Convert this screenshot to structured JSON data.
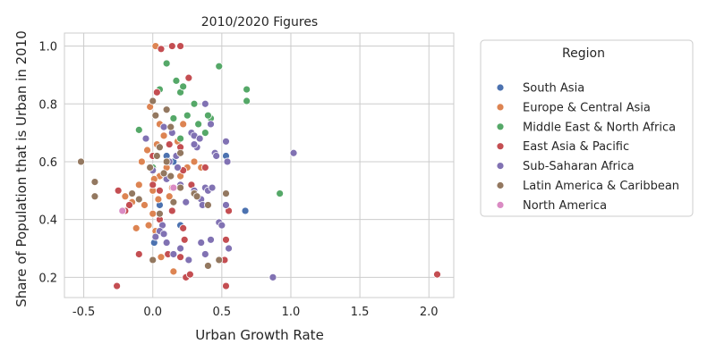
{
  "chart_data": {
    "type": "scatter",
    "title": "2010/2020 Figures",
    "xlabel": "Urban Growth Rate",
    "ylabel": "Share of Population that is Urban in 2010",
    "xlim": [
      -0.64,
      2.18
    ],
    "ylim": [
      0.13,
      1.045
    ],
    "xticks": [
      "-0.5",
      "0.0",
      "0.5",
      "1.0",
      "1.5",
      "2.0"
    ],
    "yticks": [
      "0.2",
      "0.4",
      "0.6",
      "0.8",
      "1.0"
    ],
    "grid": true,
    "legend": {
      "title": "Region",
      "position": "right-outside"
    },
    "series": [
      {
        "name": "South Asia",
        "color": "#4c72b0",
        "points": [
          [
            0.01,
            0.32
          ],
          [
            0.05,
            0.45
          ],
          [
            0.1,
            0.62
          ],
          [
            0.15,
            0.6
          ],
          [
            0.2,
            0.38
          ],
          [
            0.53,
            0.62
          ],
          [
            0.67,
            0.43
          ],
          [
            0.1,
            0.58
          ],
          [
            0.08,
            0.55
          ]
        ]
      },
      {
        "name": "Europe & Central Asia",
        "color": "#dd8452",
        "points": [
          [
            0.02,
            1.0
          ],
          [
            -0.02,
            0.79
          ],
          [
            0.05,
            0.73
          ],
          [
            -0.05,
            0.68
          ],
          [
            0.0,
            0.62
          ],
          [
            0.03,
            0.66
          ],
          [
            -0.08,
            0.6
          ],
          [
            0.1,
            0.58
          ],
          [
            0.05,
            0.55
          ],
          [
            -0.1,
            0.52
          ],
          [
            0.0,
            0.5
          ],
          [
            0.05,
            0.5
          ],
          [
            0.12,
            0.48
          ],
          [
            -0.06,
            0.45
          ],
          [
            0.0,
            0.42
          ],
          [
            -0.03,
            0.38
          ],
          [
            0.02,
            0.36
          ],
          [
            0.06,
            0.27
          ],
          [
            0.15,
            0.22
          ],
          [
            0.2,
            0.55
          ],
          [
            0.25,
            0.58
          ],
          [
            0.3,
            0.6
          ],
          [
            -0.12,
            0.37
          ],
          [
            -0.2,
            0.48
          ],
          [
            0.08,
            0.69
          ],
          [
            0.18,
            0.67
          ],
          [
            0.35,
            0.58
          ],
          [
            0.01,
            0.54
          ],
          [
            0.04,
            0.47
          ],
          [
            0.14,
            0.51
          ],
          [
            -0.04,
            0.64
          ],
          [
            0.22,
            0.73
          ],
          [
            -0.15,
            0.46
          ]
        ]
      },
      {
        "name": "Middle East & North Africa",
        "color": "#55a868",
        "points": [
          [
            0.1,
            0.94
          ],
          [
            0.05,
            0.85
          ],
          [
            0.17,
            0.88
          ],
          [
            0.2,
            0.84
          ],
          [
            0.22,
            0.86
          ],
          [
            0.3,
            0.8
          ],
          [
            0.38,
            0.7
          ],
          [
            0.42,
            0.75
          ],
          [
            0.48,
            0.93
          ],
          [
            0.68,
            0.85
          ],
          [
            0.68,
            0.81
          ],
          [
            0.92,
            0.49
          ],
          [
            -0.1,
            0.71
          ],
          [
            0.15,
            0.75
          ],
          [
            0.25,
            0.76
          ],
          [
            0.33,
            0.73
          ],
          [
            0.4,
            0.76
          ],
          [
            0.0,
            0.58
          ],
          [
            0.2,
            0.68
          ]
        ]
      },
      {
        "name": "East Asia & Pacific",
        "color": "#c44e52",
        "points": [
          [
            0.06,
            0.99
          ],
          [
            0.14,
            1.0
          ],
          [
            0.2,
            1.0
          ],
          [
            0.03,
            0.84
          ],
          [
            0.26,
            0.89
          ],
          [
            0.0,
            0.52
          ],
          [
            0.05,
            0.5
          ],
          [
            -0.25,
            0.5
          ],
          [
            -0.17,
            0.45
          ],
          [
            -0.2,
            0.43
          ],
          [
            0.05,
            0.4
          ],
          [
            0.22,
            0.37
          ],
          [
            0.23,
            0.33
          ],
          [
            0.11,
            0.28
          ],
          [
            -0.1,
            0.28
          ],
          [
            0.2,
            0.27
          ],
          [
            0.24,
            0.2
          ],
          [
            0.27,
            0.21
          ],
          [
            0.53,
            0.17
          ],
          [
            -0.26,
            0.17
          ],
          [
            0.53,
            0.33
          ],
          [
            0.55,
            0.43
          ],
          [
            0.52,
            0.26
          ],
          [
            2.06,
            0.21
          ],
          [
            0.38,
            0.58
          ],
          [
            0.0,
            0.62
          ],
          [
            0.12,
            0.66
          ],
          [
            0.2,
            0.65
          ],
          [
            0.22,
            0.57
          ],
          [
            0.28,
            0.52
          ],
          [
            0.14,
            0.43
          ]
        ]
      },
      {
        "name": "Sub-Saharan Africa",
        "color": "#8172b3",
        "points": [
          [
            0.07,
            0.38
          ],
          [
            0.02,
            0.34
          ],
          [
            0.05,
            0.36
          ],
          [
            0.08,
            0.35
          ],
          [
            0.1,
            0.32
          ],
          [
            0.15,
            0.28
          ],
          [
            0.2,
            0.3
          ],
          [
            0.26,
            0.26
          ],
          [
            0.3,
            0.5
          ],
          [
            0.35,
            0.47
          ],
          [
            0.36,
            0.45
          ],
          [
            0.38,
            0.51
          ],
          [
            0.4,
            0.5
          ],
          [
            0.43,
            0.51
          ],
          [
            0.45,
            0.63
          ],
          [
            0.46,
            0.62
          ],
          [
            0.48,
            0.39
          ],
          [
            0.5,
            0.38
          ],
          [
            0.53,
            0.45
          ],
          [
            0.55,
            0.3
          ],
          [
            0.42,
            0.33
          ],
          [
            0.35,
            0.32
          ],
          [
            0.38,
            0.28
          ],
          [
            0.2,
            0.52
          ],
          [
            0.28,
            0.7
          ],
          [
            0.3,
            0.69
          ],
          [
            0.32,
            0.65
          ],
          [
            0.34,
            0.68
          ],
          [
            0.38,
            0.8
          ],
          [
            0.42,
            0.73
          ],
          [
            0.53,
            0.67
          ],
          [
            0.54,
            0.6
          ],
          [
            1.02,
            0.63
          ],
          [
            0.87,
            0.2
          ],
          [
            -0.05,
            0.68
          ],
          [
            0.0,
            0.57
          ],
          [
            0.1,
            0.54
          ],
          [
            0.12,
            0.6
          ],
          [
            0.17,
            0.62
          ],
          [
            0.24,
            0.46
          ],
          [
            0.08,
            0.72
          ],
          [
            0.14,
            0.7
          ],
          [
            0.3,
            0.66
          ],
          [
            0.18,
            0.58
          ]
        ]
      },
      {
        "name": "Latin America & Caribbean",
        "color": "#937860",
        "points": [
          [
            -0.52,
            0.6
          ],
          [
            -0.42,
            0.53
          ],
          [
            -0.42,
            0.48
          ],
          [
            0.0,
            0.81
          ],
          [
            0.02,
            0.76
          ],
          [
            0.1,
            0.78
          ],
          [
            0.13,
            0.72
          ],
          [
            0.05,
            0.65
          ],
          [
            0.03,
            0.62
          ],
          [
            0.1,
            0.6
          ],
          [
            0.08,
            0.56
          ],
          [
            0.13,
            0.55
          ],
          [
            0.2,
            0.51
          ],
          [
            0.3,
            0.49
          ],
          [
            0.32,
            0.48
          ],
          [
            0.4,
            0.45
          ],
          [
            0.53,
            0.49
          ],
          [
            -0.15,
            0.49
          ],
          [
            -0.1,
            0.47
          ],
          [
            0.0,
            0.26
          ],
          [
            0.4,
            0.24
          ],
          [
            0.48,
            0.26
          ],
          [
            0.15,
            0.46
          ],
          [
            0.05,
            0.42
          ],
          [
            0.2,
            0.63
          ],
          [
            -0.02,
            0.58
          ]
        ]
      },
      {
        "name": "North America",
        "color": "#da8bc3",
        "points": [
          [
            -0.22,
            0.43
          ],
          [
            0.15,
            0.51
          ]
        ]
      }
    ]
  }
}
